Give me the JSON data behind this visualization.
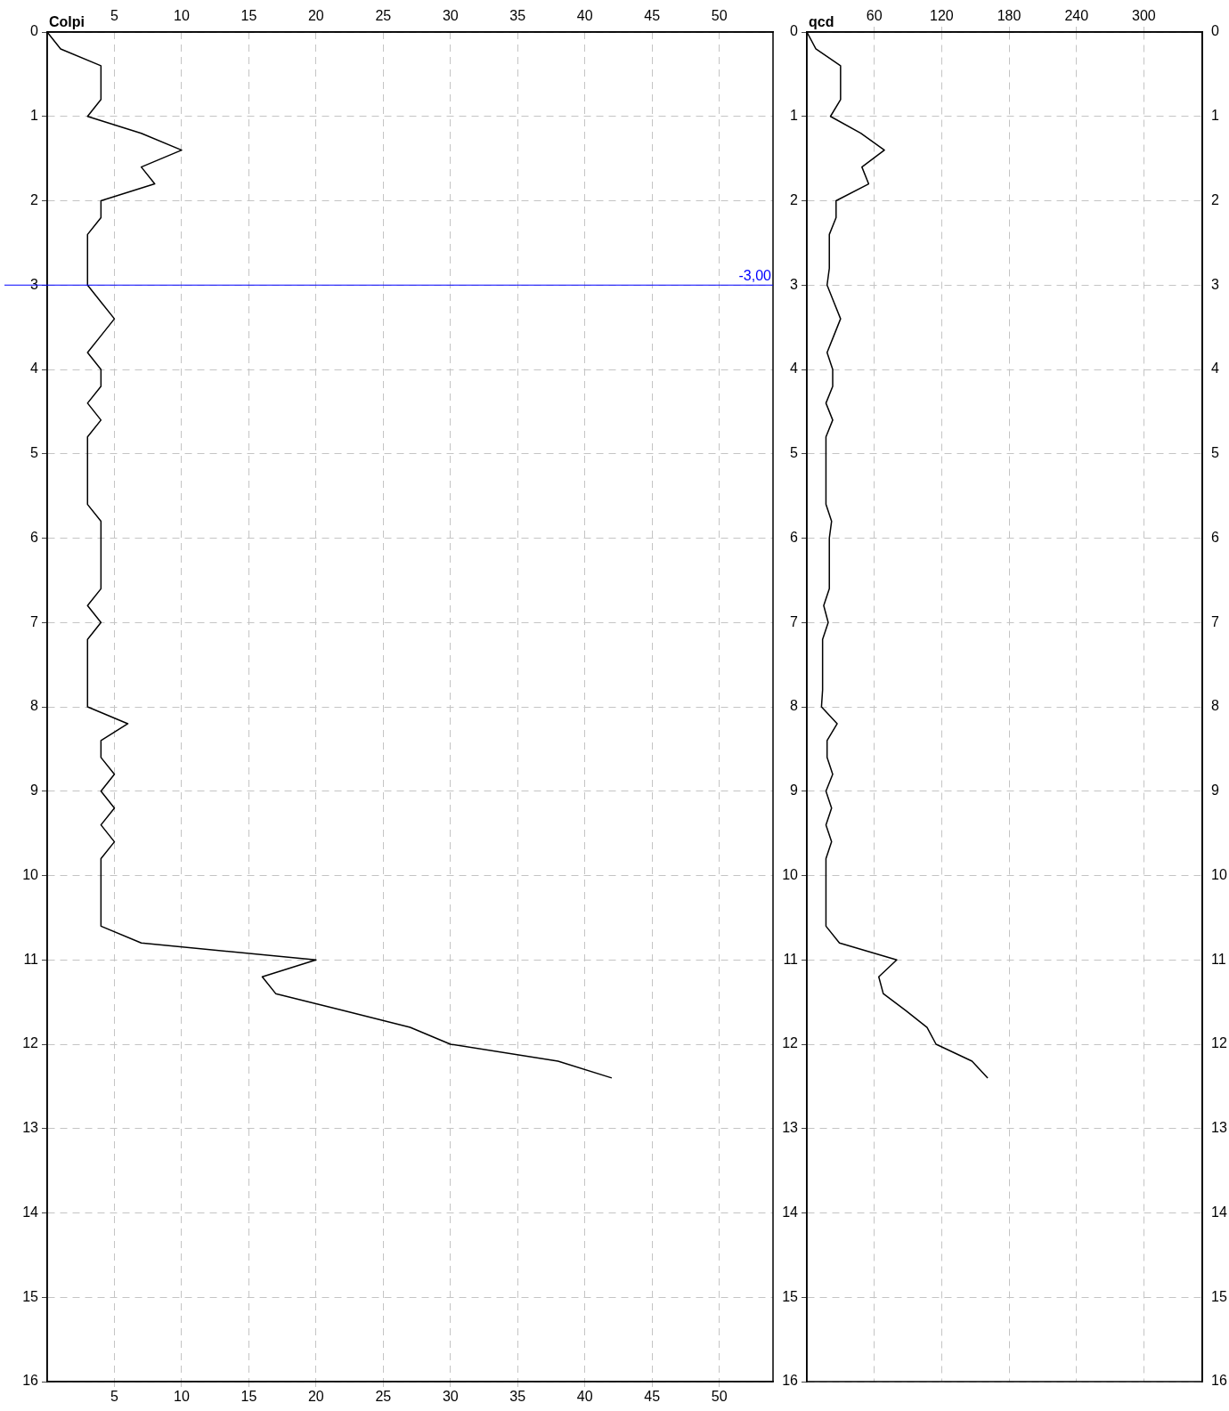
{
  "chart_data": [
    {
      "type": "line",
      "title": "Colpi",
      "xlim": [
        0,
        54
      ],
      "xticks": [
        5,
        10,
        15,
        20,
        25,
        30,
        35,
        40,
        45,
        50
      ],
      "x2lim": [
        0,
        54
      ],
      "x2ticks": [
        5,
        10,
        15,
        20,
        25,
        30,
        35,
        40,
        45,
        50
      ],
      "ylim": [
        16,
        0
      ],
      "yticks": [
        0,
        1,
        2,
        3,
        4,
        5,
        6,
        7,
        8,
        9,
        10,
        11,
        12,
        13,
        14,
        15,
        16
      ],
      "grid": true,
      "legend": false,
      "marker": "none",
      "line_style": "solid",
      "series": [
        {
          "color": "#000000",
          "x": [
            0,
            1,
            4,
            4,
            4,
            3,
            7,
            10,
            7,
            8,
            4,
            4,
            3,
            3,
            3,
            3,
            4,
            5,
            4,
            3,
            4,
            4,
            3,
            4,
            3,
            3,
            3,
            3,
            3,
            4,
            4,
            4,
            4,
            4,
            3,
            4,
            3,
            3,
            3,
            3,
            3,
            6,
            4,
            4,
            5,
            4,
            5,
            4,
            5,
            4,
            4,
            4,
            4,
            4,
            7,
            20,
            16,
            17,
            22,
            27,
            30,
            38,
            42
          ],
          "values": [
            0,
            0.2,
            0.4,
            0.6,
            0.8,
            1,
            1.2,
            1.4,
            1.6,
            1.8,
            2,
            2.2,
            2.4,
            2.6,
            2.8,
            3,
            3.2,
            3.4,
            3.6,
            3.8,
            4,
            4.2,
            4.4,
            4.6,
            4.8,
            5,
            5.2,
            5.4,
            5.6,
            5.8,
            6,
            6.2,
            6.4,
            6.6,
            6.8,
            7,
            7.2,
            7.4,
            7.6,
            7.8,
            8,
            8.2,
            8.4,
            8.6,
            8.8,
            9,
            9.2,
            9.4,
            9.6,
            9.8,
            10,
            10.2,
            10.4,
            10.6,
            10.8,
            11,
            11.2,
            11.4,
            11.6,
            11.8,
            12,
            12.2,
            12.4
          ]
        }
      ],
      "ref_lines": [
        {
          "axis": "y",
          "value": 3,
          "color": "#0000ff"
        }
      ],
      "annotations": [
        "-3,00"
      ]
    },
    {
      "type": "line",
      "title": "qcd",
      "xlim": [
        0,
        352
      ],
      "xticks": [
        60,
        120,
        180,
        240,
        300
      ],
      "ylim": [
        16,
        0
      ],
      "yticks": [
        0,
        1,
        2,
        3,
        4,
        5,
        6,
        7,
        8,
        9,
        10,
        11,
        12,
        13,
        14,
        15,
        16
      ],
      "y2lim": [
        16,
        0
      ],
      "y2ticks": [
        0,
        1,
        2,
        3,
        4,
        5,
        6,
        7,
        8,
        9,
        10,
        11,
        12,
        13,
        14,
        15,
        16
      ],
      "grid": true,
      "legend": false,
      "marker": "none",
      "line_style": "solid",
      "series": [
        {
          "color": "#000000",
          "x": [
            0,
            8,
            30,
            30,
            30,
            21,
            48,
            69,
            49,
            55,
            26,
            26,
            20,
            20,
            20,
            18,
            24,
            30,
            24,
            18,
            23,
            23,
            17,
            23,
            17,
            17,
            17,
            17,
            17,
            22,
            20,
            20,
            20,
            20,
            15,
            19,
            14,
            14,
            14,
            14,
            13,
            27,
            18,
            18,
            23,
            17,
            22,
            17,
            22,
            17,
            17,
            17,
            17,
            17,
            29,
            80,
            64,
            68,
            88,
            107,
            115,
            147,
            161
          ],
          "values": [
            0,
            0.2,
            0.4,
            0.6,
            0.8,
            1,
            1.2,
            1.4,
            1.6,
            1.8,
            2,
            2.2,
            2.4,
            2.6,
            2.8,
            3,
            3.2,
            3.4,
            3.6,
            3.8,
            4,
            4.2,
            4.4,
            4.6,
            4.8,
            5,
            5.2,
            5.4,
            5.6,
            5.8,
            6,
            6.2,
            6.4,
            6.6,
            6.8,
            7,
            7.2,
            7.4,
            7.6,
            7.8,
            8,
            8.2,
            8.4,
            8.6,
            8.8,
            9,
            9.2,
            9.4,
            9.6,
            9.8,
            10,
            10.2,
            10.4,
            10.6,
            10.8,
            11,
            11.2,
            11.4,
            11.6,
            11.8,
            12,
            12.2,
            12.4
          ]
        }
      ]
    }
  ]
}
